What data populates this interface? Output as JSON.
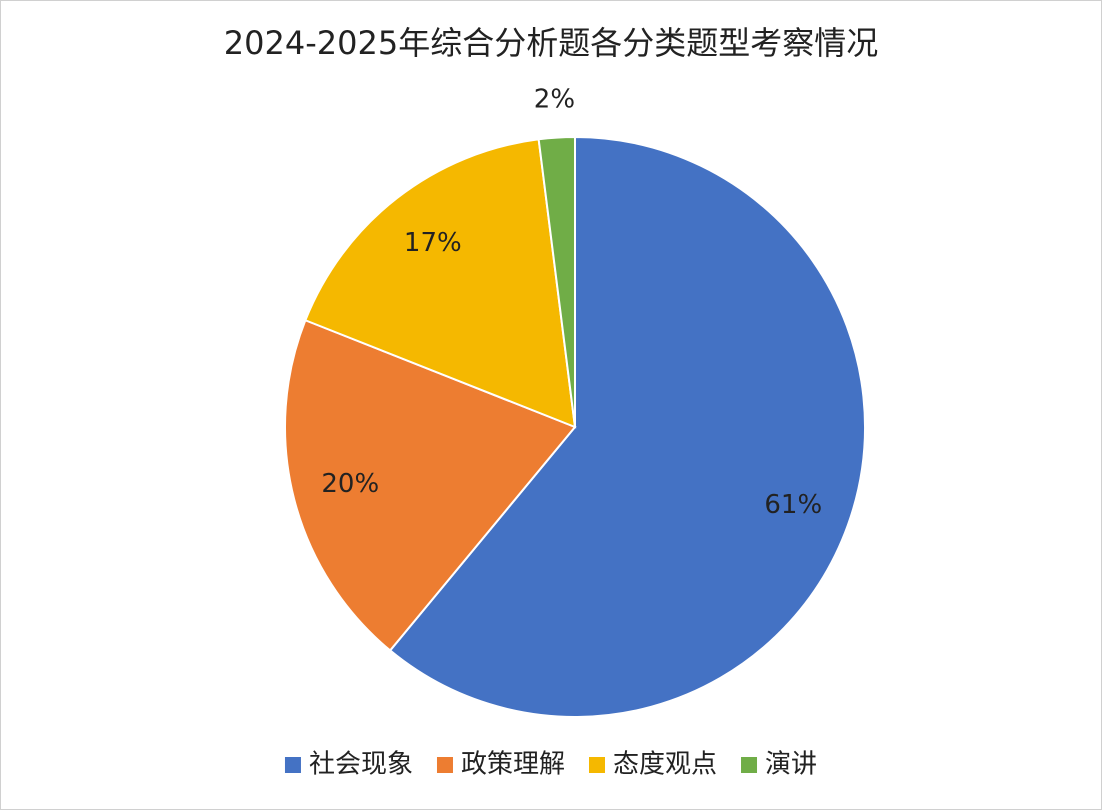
{
  "chart_data": {
    "type": "pie",
    "title": "2024-2025年综合分析题各分类题型考察情况",
    "categories": [
      "社会现象",
      "政策理解",
      "态度观点",
      "演讲"
    ],
    "values": [
      61,
      20,
      17,
      2
    ],
    "value_labels": [
      "61%",
      "20%",
      "17%",
      "2%"
    ],
    "colors": [
      "#4472c4",
      "#ed7d31",
      "#f5b800",
      "#70ad47"
    ],
    "legend": "bottom"
  }
}
